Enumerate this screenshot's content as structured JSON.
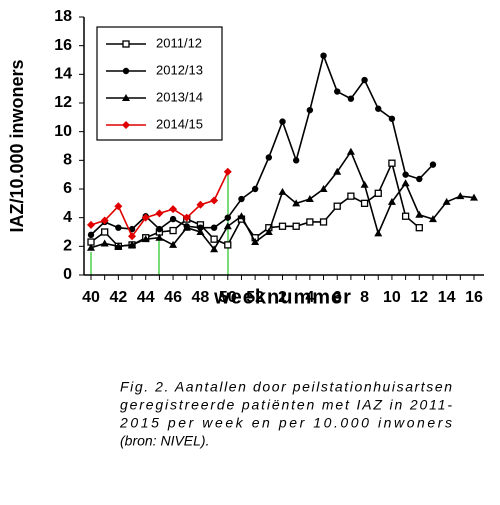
{
  "chart_data": {
    "type": "line",
    "y_label": "IAZ/10.000 inwoners",
    "x_label": "weeknummer",
    "categories": [
      "40",
      null,
      "42",
      null,
      "44",
      null,
      "46",
      null,
      "48",
      null,
      "50",
      null,
      "52",
      null,
      "2",
      null,
      "4",
      null,
      "6",
      null,
      "8",
      null,
      "10",
      null,
      "12",
      null,
      "14",
      null,
      "16"
    ],
    "ylim": [
      0,
      18
    ],
    "yticks": [
      0,
      2,
      4,
      6,
      8,
      10,
      12,
      14,
      16,
      18
    ],
    "series": [
      {
        "name": "2011/12",
        "color": "#000000",
        "marker": "square-open",
        "values": [
          2.3,
          3.0,
          2.0,
          2.1,
          2.6,
          3.0,
          3.1,
          3.9,
          3.5,
          2.5,
          2.1,
          3.9,
          2.6,
          3.3,
          3.4,
          3.4,
          3.7,
          3.7,
          4.8,
          5.5,
          5.0,
          5.7,
          7.8,
          4.1,
          3.3,
          null,
          null,
          null,
          null
        ]
      },
      {
        "name": "2012/13",
        "color": "#000000",
        "marker": "circle",
        "values": [
          2.8,
          3.7,
          3.3,
          3.2,
          4.1,
          3.2,
          3.9,
          3.4,
          3.3,
          3.3,
          4.0,
          5.3,
          6.0,
          8.2,
          10.7,
          8.0,
          11.5,
          15.3,
          12.8,
          12.3,
          13.6,
          11.6,
          10.9,
          7.0,
          6.7,
          7.7,
          null,
          null,
          null
        ]
      },
      {
        "name": "2013/14",
        "color": "#000000",
        "marker": "triangle",
        "values": [
          1.9,
          2.2,
          2.0,
          2.1,
          2.5,
          2.6,
          2.1,
          3.3,
          3.0,
          1.8,
          3.4,
          4.1,
          2.3,
          3.0,
          5.8,
          5.0,
          5.3,
          6.0,
          7.2,
          8.6,
          6.3,
          2.9,
          5.1,
          6.4,
          4.2,
          3.9,
          5.1,
          5.5,
          5.4
        ]
      },
      {
        "name": "2014/15",
        "color": "#e00000",
        "marker": "diamond",
        "values": [
          3.5,
          3.8,
          4.8,
          2.7,
          4.0,
          4.3,
          4.6,
          4.0,
          4.9,
          5.2,
          7.2,
          null,
          null,
          null,
          null,
          null,
          null,
          null,
          null,
          null,
          null,
          null,
          null,
          null,
          null,
          null,
          null,
          null,
          null
        ]
      }
    ],
    "caption": [
      "Fig. 2. Aantallen door peilstationhuisartsen",
      "geregistreerde patiënten met IAZ in 2011-",
      "2015 per week en per 10.000 inwoners",
      "(bron: NIVEL)."
    ]
  }
}
